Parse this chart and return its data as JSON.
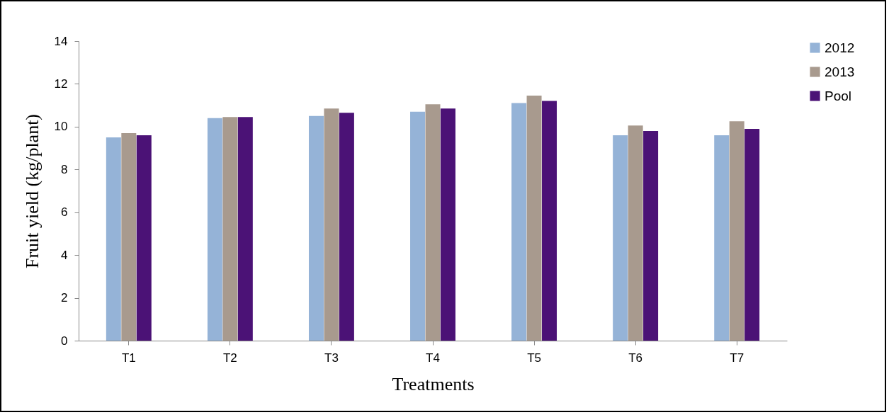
{
  "chart_data": {
    "type": "bar",
    "xlabel": "Treatments",
    "ylabel": "Fruit yield (kg/plant)",
    "categories": [
      "T1",
      "T2",
      "T3",
      "T4",
      "T5",
      "T6",
      "T7"
    ],
    "series": [
      {
        "name": "2012",
        "color": "#95b3d7",
        "values": [
          9.5,
          10.4,
          10.5,
          10.7,
          11.1,
          9.6,
          9.6
        ]
      },
      {
        "name": "2013",
        "color": "#a89a8e",
        "values": [
          9.7,
          10.45,
          10.85,
          11.05,
          11.45,
          10.05,
          10.25
        ]
      },
      {
        "name": "Pool",
        "color": "#4b1276",
        "values": [
          9.6,
          10.45,
          10.65,
          10.85,
          11.2,
          9.8,
          9.9
        ]
      }
    ],
    "ylim": [
      0,
      14
    ],
    "yticks": [
      0,
      2,
      4,
      6,
      8,
      10,
      12,
      14
    ],
    "grid": false,
    "legend": "right"
  }
}
